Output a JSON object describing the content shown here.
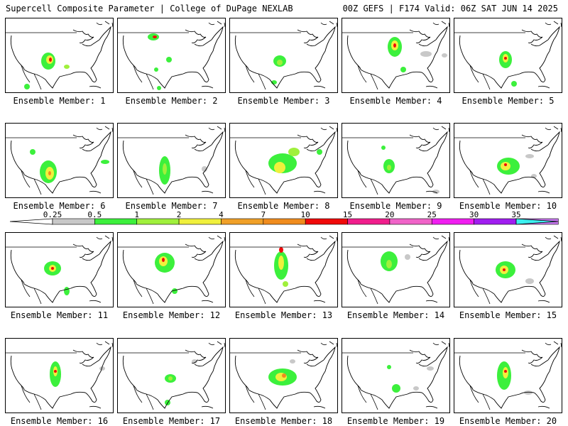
{
  "header": {
    "left": "Supercell Composite Parameter | College of DuPage NEXLAB",
    "right": "00Z GEFS | F174 Valid: 06Z SAT JUN 14 2025"
  },
  "colorbar": {
    "labels": [
      "0.25",
      "0.5",
      "1",
      "2",
      "4",
      "7",
      "10",
      "15",
      "20",
      "25",
      "30",
      "35"
    ],
    "colors": [
      "#c8c8c8",
      "#3cf03c",
      "#a0f03c",
      "#f0f03c",
      "#f0a028",
      "#f08c1e",
      "#f00a0a",
      "#f01e8c",
      "#f064c8",
      "#f01ef0",
      "#a01ef0",
      "#c878f0",
      "#3cf0f0"
    ]
  },
  "members": [
    {
      "label": "Ensemble Member: 1"
    },
    {
      "label": "Ensemble Member: 2"
    },
    {
      "label": "Ensemble Member: 3"
    },
    {
      "label": "Ensemble Member: 4"
    },
    {
      "label": "Ensemble Member: 5"
    },
    {
      "label": "Ensemble Member: 6"
    },
    {
      "label": "Ensemble Member: 7"
    },
    {
      "label": "Ensemble Member: 8"
    },
    {
      "label": "Ensemble Member: 9"
    },
    {
      "label": "Ensemble Member: 10"
    },
    {
      "label": "Ensemble Member: 11"
    },
    {
      "label": "Ensemble Member: 12"
    },
    {
      "label": "Ensemble Member: 13"
    },
    {
      "label": "Ensemble Member: 14"
    },
    {
      "label": "Ensemble Member: 15"
    },
    {
      "label": "Ensemble Member: 16"
    },
    {
      "label": "Ensemble Member: 17"
    },
    {
      "label": "Ensemble Member: 18"
    },
    {
      "label": "Ensemble Member: 19"
    },
    {
      "label": "Ensemble Member: 20"
    }
  ]
}
